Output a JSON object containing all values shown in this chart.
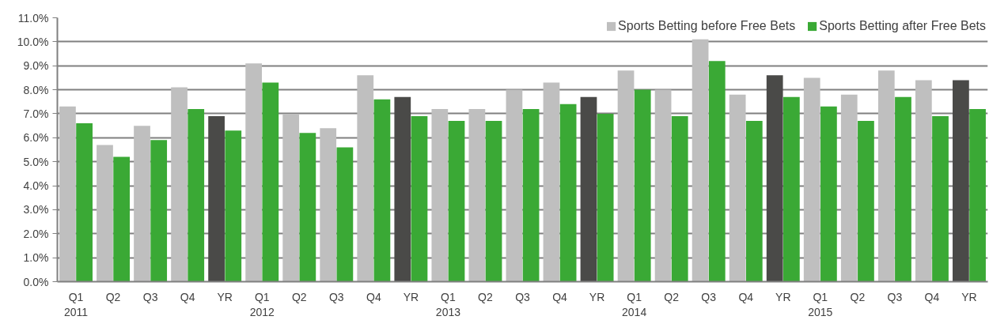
{
  "chart_data": {
    "type": "bar",
    "categories": [
      "Q1\n2011",
      "Q2",
      "Q3",
      "Q4",
      "YR",
      "Q1\n2012",
      "Q2",
      "Q3",
      "Q4",
      "YR",
      "Q1\n2013",
      "Q2",
      "Q3",
      "Q4",
      "YR",
      "Q1\n2014",
      "Q2",
      "Q3",
      "Q4",
      "YR",
      "Q1\n2015",
      "Q2",
      "Q3",
      "Q4",
      "YR"
    ],
    "series": [
      {
        "name": "Sports Betting before Free Bets",
        "color": "#bfbfbf",
        "colors": [
          "#bfbfbf",
          "#bfbfbf",
          "#bfbfbf",
          "#bfbfbf",
          "#4a4a48",
          "#bfbfbf",
          "#bfbfbf",
          "#bfbfbf",
          "#bfbfbf",
          "#4a4a48",
          "#bfbfbf",
          "#bfbfbf",
          "#bfbfbf",
          "#bfbfbf",
          "#4a4a48",
          "#bfbfbf",
          "#bfbfbf",
          "#bfbfbf",
          "#bfbfbf",
          "#4a4a48",
          "#bfbfbf",
          "#bfbfbf",
          "#bfbfbf",
          "#bfbfbf",
          "#4a4a48"
        ],
        "values": [
          7.3,
          5.7,
          6.5,
          8.1,
          6.9,
          9.1,
          7.0,
          6.4,
          8.6,
          7.7,
          7.2,
          7.2,
          8.0,
          8.3,
          7.7,
          8.8,
          8.0,
          10.1,
          7.8,
          8.6,
          8.5,
          7.8,
          8.8,
          8.4,
          8.4
        ]
      },
      {
        "name": "Sports Betting after Free Bets",
        "color": "#3aa935",
        "values": [
          6.6,
          5.2,
          5.9,
          7.2,
          6.3,
          8.3,
          6.2,
          5.6,
          7.6,
          6.9,
          6.7,
          6.7,
          7.2,
          7.4,
          7.0,
          8.0,
          6.9,
          9.2,
          6.7,
          7.7,
          7.3,
          6.7,
          7.7,
          6.9,
          7.2
        ]
      }
    ],
    "ylim": [
      0,
      11
    ],
    "yticks": [
      {
        "value": 0,
        "label": "0.0%"
      },
      {
        "value": 1,
        "label": "1.0%"
      },
      {
        "value": 2,
        "label": "2.0%"
      },
      {
        "value": 3,
        "label": "3.0%"
      },
      {
        "value": 4,
        "label": "4.0%"
      },
      {
        "value": 5,
        "label": "5.0%"
      },
      {
        "value": 6,
        "label": "6.0%"
      },
      {
        "value": 7,
        "label": "7.0%"
      },
      {
        "value": 8,
        "label": "8.0%"
      },
      {
        "value": 9,
        "label": "9.0%"
      },
      {
        "value": 10,
        "label": "10.0%"
      },
      {
        "value": 11,
        "label": "11.0%"
      }
    ],
    "grid": "y",
    "legend": "top right"
  }
}
